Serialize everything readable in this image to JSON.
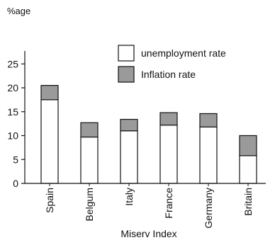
{
  "chart_data": {
    "type": "bar",
    "stacked": true,
    "title": "",
    "ylabel": "%age",
    "xlabel": "Miserv Index",
    "categories": [
      "Spain",
      "Belgum",
      "Italy",
      "France",
      "Germany",
      "Britain"
    ],
    "series": [
      {
        "name": "unemployment rate",
        "values": [
          17.5,
          9.7,
          11,
          12.2,
          11.8,
          5.8
        ],
        "color": "#ffffff"
      },
      {
        "name": "Inflation rate",
        "values": [
          3,
          3,
          2.4,
          2.6,
          2.8,
          4.2
        ],
        "color": "#9a9a9a"
      }
    ],
    "ylim": [
      0,
      30
    ],
    "yticks": [
      0,
      5,
      10,
      15,
      20,
      25
    ],
    "grid": false,
    "legend_position": "top-right"
  }
}
